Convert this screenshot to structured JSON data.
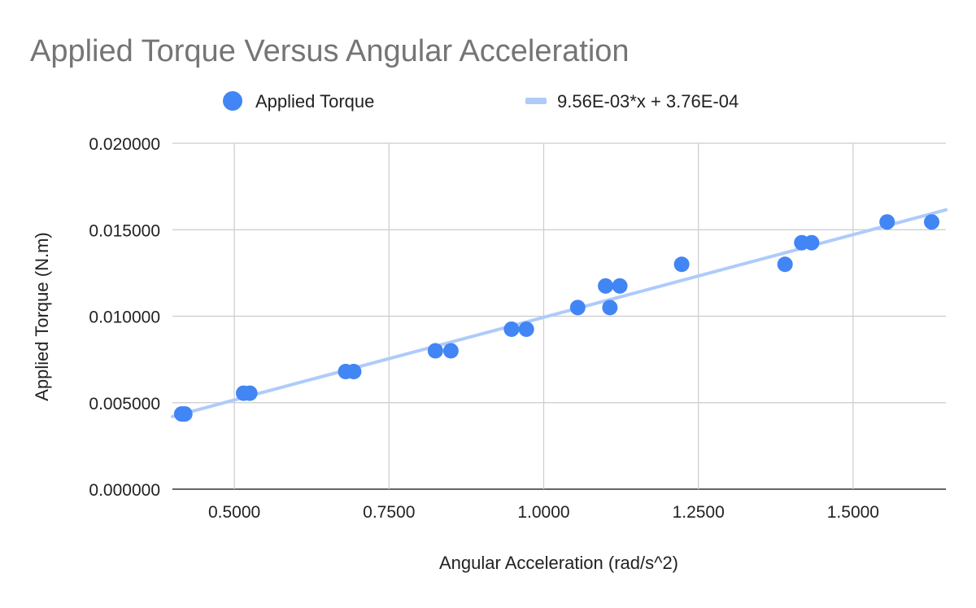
{
  "chart_data": {
    "type": "scatter",
    "title": "Applied Torque Versus Angular Acceleration",
    "xlabel": "Angular Acceleration (rad/s^2)",
    "ylabel": "Applied Torque (N.m)",
    "xlim": [
      0.4,
      1.65
    ],
    "ylim": [
      0,
      0.02
    ],
    "x_ticks": [
      "0.5000",
      "0.7500",
      "1.0000",
      "1.2500",
      "1.5000"
    ],
    "x_tick_values": [
      0.5,
      0.75,
      1.0,
      1.25,
      1.5
    ],
    "y_ticks": [
      "0.000000",
      "0.005000",
      "0.010000",
      "0.015000",
      "0.020000"
    ],
    "y_tick_values": [
      0,
      0.005,
      0.01,
      0.015,
      0.02
    ],
    "grid": true,
    "legend_position": "top",
    "series": [
      {
        "name": "Applied Torque",
        "color": "#4285f4",
        "points": [
          {
            "x": 0.415,
            "y": 0.00435
          },
          {
            "x": 0.42,
            "y": 0.00435
          },
          {
            "x": 0.515,
            "y": 0.00555
          },
          {
            "x": 0.525,
            "y": 0.00555
          },
          {
            "x": 0.68,
            "y": 0.0068
          },
          {
            "x": 0.693,
            "y": 0.0068
          },
          {
            "x": 0.825,
            "y": 0.008
          },
          {
            "x": 0.85,
            "y": 0.008
          },
          {
            "x": 0.948,
            "y": 0.00925
          },
          {
            "x": 0.972,
            "y": 0.00925
          },
          {
            "x": 1.055,
            "y": 0.0105
          },
          {
            "x": 1.107,
            "y": 0.0105
          },
          {
            "x": 1.1,
            "y": 0.01175
          },
          {
            "x": 1.123,
            "y": 0.01175
          },
          {
            "x": 1.223,
            "y": 0.013
          },
          {
            "x": 1.39,
            "y": 0.013
          },
          {
            "x": 1.417,
            "y": 0.01425
          },
          {
            "x": 1.433,
            "y": 0.01425
          },
          {
            "x": 1.555,
            "y": 0.01545
          },
          {
            "x": 1.627,
            "y": 0.01545
          }
        ]
      }
    ],
    "trendline": {
      "name": "9.56E-03*x + 3.76E-04",
      "color": "#aecbfa",
      "slope": 0.00956,
      "intercept": 0.000376
    }
  }
}
